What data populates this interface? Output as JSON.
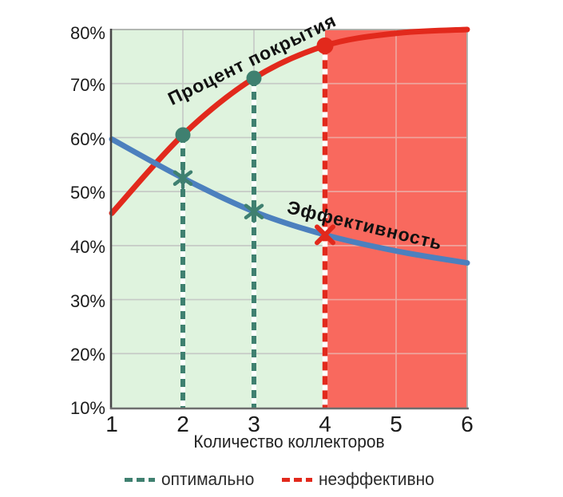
{
  "chart_data": {
    "type": "line",
    "x": [
      1,
      2,
      3,
      4,
      5,
      6
    ],
    "series": [
      {
        "name": "Процент покрытия",
        "color": "#e2291c",
        "values": [
          46,
          60.5,
          71,
          77,
          79.3,
          80
        ]
      },
      {
        "name": "Эффективность",
        "color": "#4c80be",
        "values": [
          59.7,
          52.5,
          46.3,
          42,
          39,
          36.8
        ]
      }
    ],
    "xlabel": "Количество коллекторов",
    "ylabel": "",
    "ylim": [
      10,
      80
    ],
    "xlim": [
      1,
      6
    ],
    "y_ticks": [
      "80%",
      "70%",
      "60%",
      "50%",
      "40%",
      "30%",
      "20%",
      "10%"
    ],
    "y_tick_values": [
      80,
      70,
      60,
      50,
      40,
      30,
      20,
      10
    ],
    "x_ticks": [
      "1",
      "2",
      "3",
      "4",
      "5",
      "6"
    ],
    "grid": true,
    "regions": [
      {
        "name": "optimal",
        "from": 1,
        "to": 4,
        "color": "#dff3de"
      },
      {
        "name": "inefficient",
        "from": 4,
        "to": 6,
        "color": "#f9695e"
      }
    ],
    "annotations": {
      "optimal_x": [
        2,
        3
      ],
      "inefficient_x": [
        4
      ]
    },
    "legend": [
      {
        "label": "оптимально",
        "color": "#3f8070",
        "style": "dashed"
      },
      {
        "label": "неэффективно",
        "color": "#e2291c",
        "style": "dashed"
      }
    ]
  },
  "colors": {
    "green_bg": "#dff3de",
    "red_bg": "#f9695e",
    "grid_on_green": "#c6cac6",
    "grid_on_red": "#eea69e",
    "border": "#a9aea9",
    "teal": "#3f8070",
    "red": "#e2291c",
    "blue": "#4c80be",
    "axis_y": "#474747",
    "axis_x": "#6e6e6e",
    "white": "#ffffff"
  }
}
